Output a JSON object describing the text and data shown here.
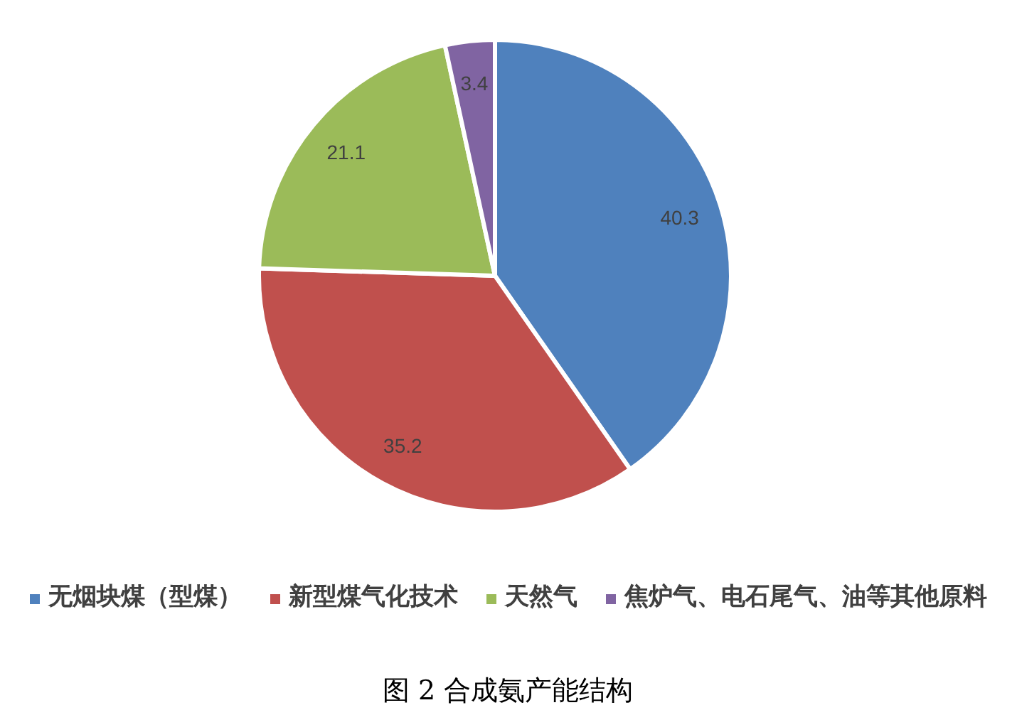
{
  "chart_data": {
    "type": "pie",
    "title": "图 2 合成氨产能结构",
    "categories": [
      "无烟块煤（型煤）",
      "新型煤气化技术",
      "天然气",
      "焦炉气、电石尾气、油等其他原料"
    ],
    "values": [
      40.3,
      35.2,
      21.1,
      3.4
    ],
    "colors": [
      "#4f81bd",
      "#c0504d",
      "#9bbb59",
      "#8064a2"
    ],
    "data_labels": true,
    "legend": "bottom"
  }
}
